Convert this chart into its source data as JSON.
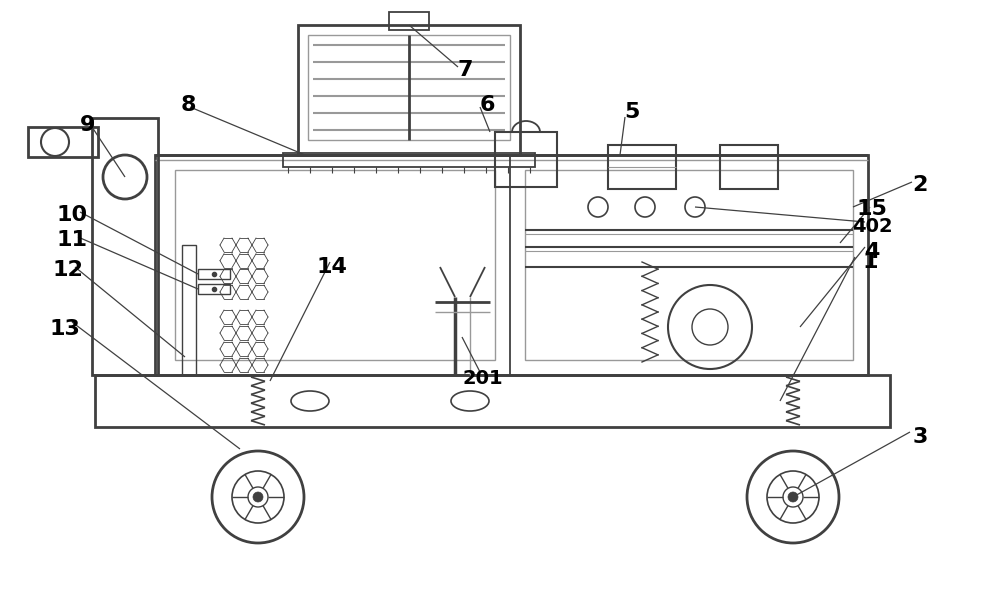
{
  "bg_color": "#ffffff",
  "lc": "#404040",
  "lg": "#999999",
  "fig_width": 10.0,
  "fig_height": 5.97
}
